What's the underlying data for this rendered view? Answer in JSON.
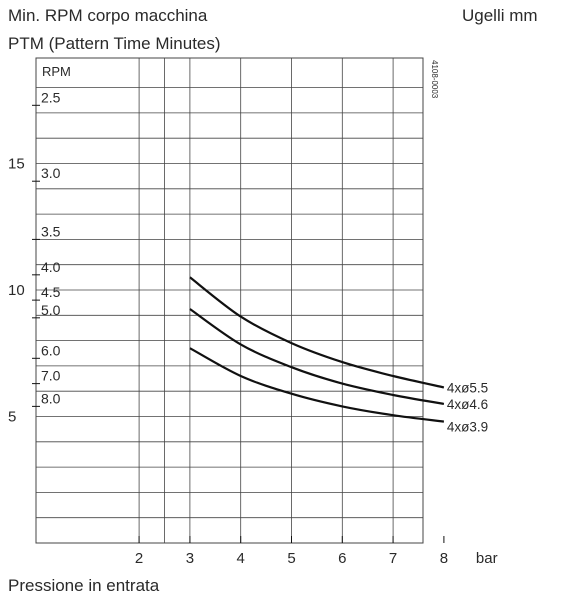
{
  "header": {
    "title_line1": "Min. RPM corpo macchina",
    "title_line2": "PTM (Pattern Time Minutes)",
    "nozzles_title": "Ugelli mm"
  },
  "footer": {
    "xaxis_title": "Pressione in entrata"
  },
  "chart_data": {
    "type": "line",
    "title": "Min. RPM corpo macchina",
    "subtitle": "PTM (Pattern Time Minutes)",
    "xlabel": "Pressione in entrata",
    "x_unit": "bar",
    "xlim": [
      1.5,
      8.5
    ],
    "x_ticks": [
      2,
      3,
      4,
      5,
      6,
      7,
      8
    ],
    "rpm_axis": {
      "label": "RPM",
      "ylim": [
        0,
        19
      ],
      "ticks": [
        5,
        10,
        15
      ]
    },
    "ptm_axis": {
      "ticks": [
        "2.5",
        "3.0",
        "3.5",
        "4.0",
        "4.5",
        "5.0",
        "6.0",
        "7.0",
        "8.0"
      ],
      "tick_rpm": [
        17.3,
        14.3,
        12.0,
        10.6,
        9.6,
        8.9,
        7.3,
        6.3,
        5.4
      ]
    },
    "figure_code": "4108-0003",
    "grid": true,
    "legend_title": "Ugelli mm",
    "legend_placement": "right, at line ends",
    "series": [
      {
        "name": "4xø5.5",
        "x": [
          3,
          4,
          5,
          6,
          7,
          8
        ],
        "y": [
          10.5,
          8.95,
          7.9,
          7.15,
          6.6,
          6.15
        ]
      },
      {
        "name": "4xø4.6",
        "x": [
          3,
          4,
          5,
          6,
          7,
          8
        ],
        "y": [
          9.25,
          7.85,
          6.95,
          6.3,
          5.85,
          5.5
        ]
      },
      {
        "name": "4xø3.9",
        "x": [
          3,
          4,
          5,
          6,
          7,
          8
        ],
        "y": [
          7.7,
          6.6,
          5.9,
          5.4,
          5.05,
          4.8
        ]
      }
    ],
    "line_color": "#111111",
    "grid_color": "#444444"
  }
}
